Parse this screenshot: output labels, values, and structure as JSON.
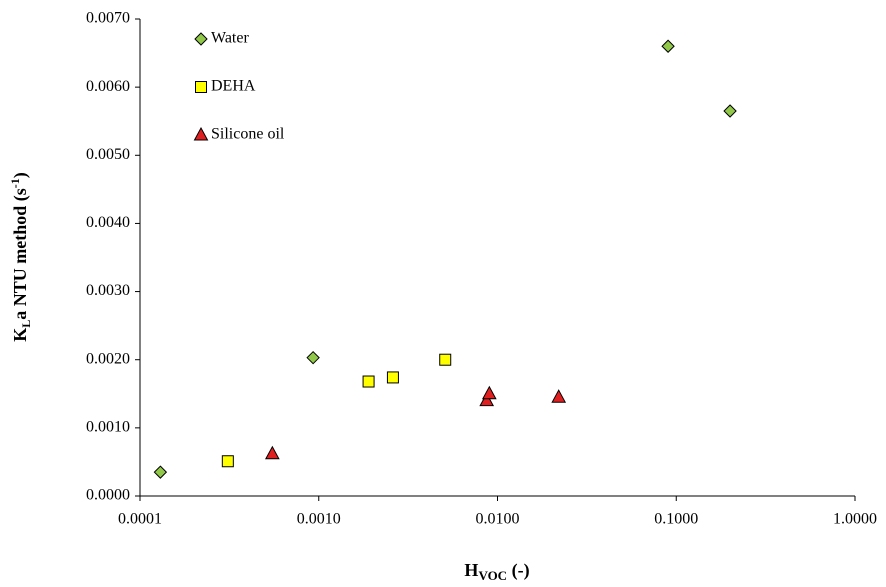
{
  "chart_data": {
    "type": "scatter",
    "xlabel": [
      "H",
      "VOC",
      " (-)"
    ],
    "ylabel": [
      "K",
      "L",
      "a NTU method (s",
      "-1",
      ")"
    ],
    "xscale": "log",
    "xlim": [
      0.0001,
      1
    ],
    "ylim": [
      0,
      0.007
    ],
    "xticks": [
      {
        "value": 0.0001,
        "label": "0.0001"
      },
      {
        "value": 0.001,
        "label": "0.0010"
      },
      {
        "value": 0.01,
        "label": "0.0100"
      },
      {
        "value": 0.1,
        "label": "0.1000"
      },
      {
        "value": 1,
        "label": "1.0000"
      }
    ],
    "yticks": [
      {
        "value": 0,
        "label": "0.0000"
      },
      {
        "value": 0.001,
        "label": "0.0010"
      },
      {
        "value": 0.002,
        "label": "0.0020"
      },
      {
        "value": 0.003,
        "label": "0.0030"
      },
      {
        "value": 0.004,
        "label": "0.0040"
      },
      {
        "value": 0.005,
        "label": "0.0050"
      },
      {
        "value": 0.006,
        "label": "0.0060"
      },
      {
        "value": 0.007,
        "label": "0.0070"
      }
    ],
    "grid": false,
    "legend": "upper left",
    "series": [
      {
        "name": "Water",
        "color": "#92c84a",
        "marker": "diamond",
        "x": [
          0.00013,
          0.00093,
          0.09,
          0.2
        ],
        "values": [
          0.00035,
          0.00203,
          0.0066,
          0.00565
        ]
      },
      {
        "name": "DEHA",
        "color": "#ffff00",
        "marker": "square",
        "x": [
          0.00031,
          0.0019,
          0.0026,
          0.0051
        ],
        "values": [
          0.00051,
          0.00168,
          0.00174,
          0.002
        ]
      },
      {
        "name": "Silicone oil",
        "color": "#e02020",
        "marker": "triangle",
        "x": [
          0.00055,
          0.0087,
          0.009,
          0.022
        ],
        "values": [
          0.00062,
          0.0014,
          0.0015,
          0.00145
        ]
      }
    ]
  }
}
